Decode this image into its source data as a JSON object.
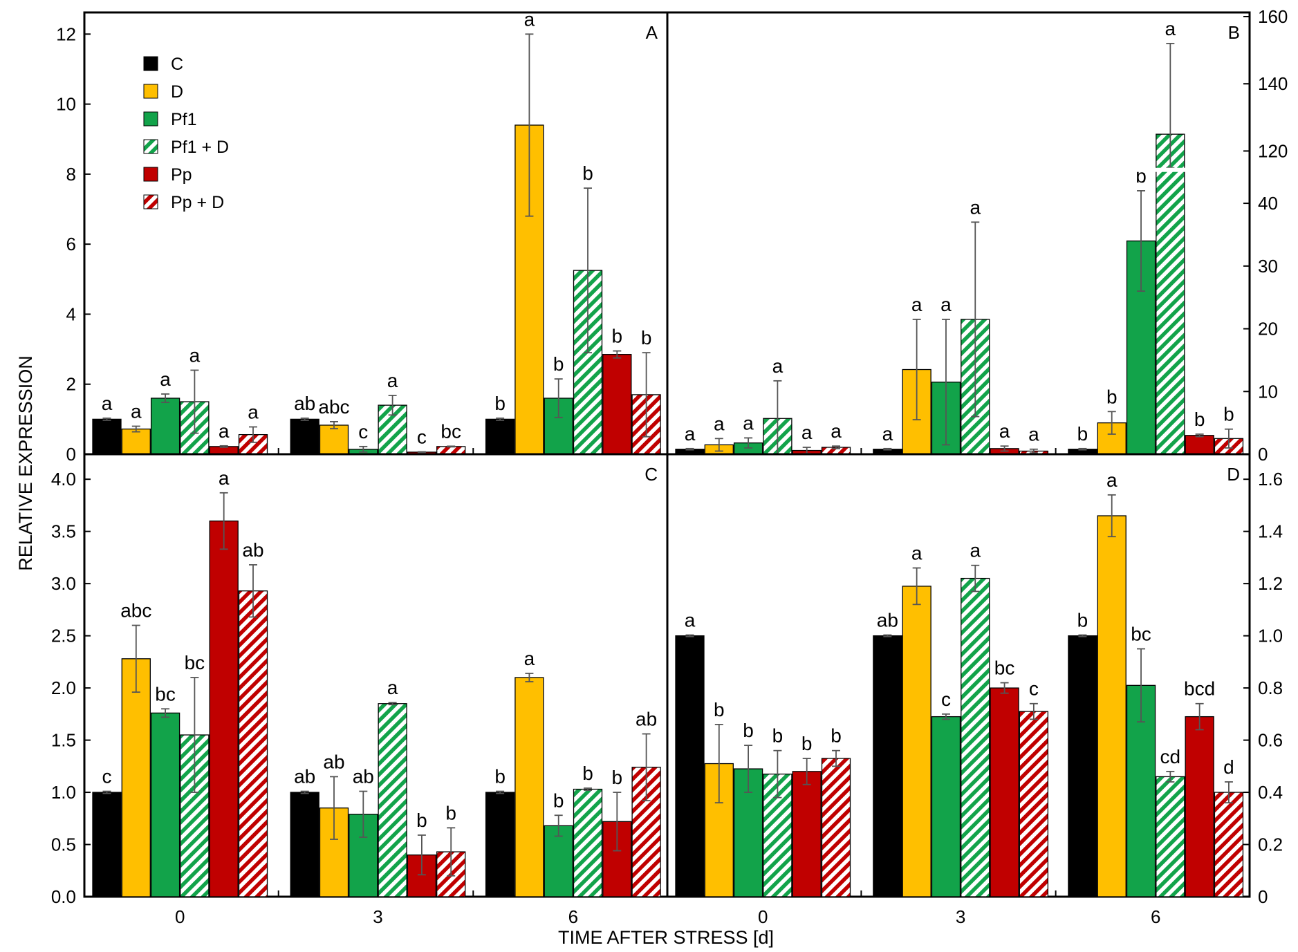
{
  "figure": {
    "ylabel": "RELATIVE EXPRESSION",
    "xlabel": "TIME AFTER STRESS [d]"
  },
  "legend": [
    {
      "label": "C",
      "color": "#000000",
      "pattern": "solid"
    },
    {
      "label": "D",
      "color": "#ffbf00",
      "pattern": "solid"
    },
    {
      "label": "Pf1",
      "color": "#12a34a",
      "pattern": "solid"
    },
    {
      "label": "Pf1 + D",
      "color": "#12a34a",
      "pattern": "hatch"
    },
    {
      "label": "Pp",
      "color": "#c00000",
      "pattern": "solid"
    },
    {
      "label": "Pp + D",
      "color": "#c00000",
      "pattern": "hatch"
    }
  ],
  "chart_data": [
    {
      "panel": "A",
      "type": "bar",
      "categories": [
        "0",
        "3",
        "6"
      ],
      "axis_side": "left",
      "ylim": [
        0,
        12.5
      ],
      "yticks": [
        0,
        2,
        4,
        6,
        8,
        10,
        12
      ],
      "series": [
        {
          "name": "C",
          "values": [
            1.0,
            1.0,
            1.0
          ],
          "errors": [
            0.03,
            0.03,
            0.03
          ],
          "letters": [
            "a",
            "ab",
            "b"
          ]
        },
        {
          "name": "D",
          "values": [
            0.72,
            0.83,
            9.4
          ],
          "errors": [
            0.08,
            0.1,
            2.6
          ],
          "letters": [
            "a",
            "abc",
            "a"
          ]
        },
        {
          "name": "Pf1",
          "values": [
            1.6,
            0.14,
            1.6
          ],
          "errors": [
            0.12,
            0.08,
            0.55
          ],
          "letters": [
            "a",
            "c",
            "b"
          ]
        },
        {
          "name": "Pf1 + D",
          "values": [
            1.5,
            1.4,
            5.25
          ],
          "errors": [
            0.9,
            0.28,
            2.35
          ],
          "letters": [
            "a",
            "a",
            "b"
          ]
        },
        {
          "name": "Pp",
          "values": [
            0.22,
            0.06,
            2.85
          ],
          "errors": [
            0.02,
            0.01,
            0.1
          ],
          "letters": [
            "a",
            "c",
            "b"
          ]
        },
        {
          "name": "Pp + D",
          "values": [
            0.56,
            0.22,
            1.7
          ],
          "errors": [
            0.22,
            0.01,
            1.2
          ],
          "letters": [
            "a",
            "bc",
            "b"
          ]
        }
      ]
    },
    {
      "panel": "B",
      "type": "bar",
      "categories": [
        "0",
        "3",
        "6"
      ],
      "axis_side": "right",
      "axis_break": {
        "lower_max": 45,
        "upper_min": 115,
        "upper_max": 160
      },
      "yticks": [
        0,
        10,
        20,
        30,
        40,
        120,
        140,
        160
      ],
      "series": [
        {
          "name": "C",
          "values": [
            0.8,
            0.8,
            0.8
          ],
          "errors": [
            0.1,
            0.1,
            0.1
          ],
          "letters": [
            "a",
            "a",
            "b"
          ]
        },
        {
          "name": "D",
          "values": [
            1.5,
            13.5,
            5.0
          ],
          "errors": [
            1.0,
            8.0,
            1.8
          ],
          "letters": [
            "a",
            "a",
            "b"
          ]
        },
        {
          "name": "Pf1",
          "values": [
            1.8,
            11.5,
            34.0
          ],
          "errors": [
            0.8,
            10.0,
            8.0
          ],
          "letters": [
            "a",
            "a",
            "b"
          ]
        },
        {
          "name": "Pf1 + D",
          "values": [
            5.7,
            21.5,
            125.0
          ],
          "errors": [
            6.0,
            15.5,
            27.0
          ],
          "letters": [
            "a",
            "a",
            "a"
          ]
        },
        {
          "name": "Pp",
          "values": [
            0.6,
            0.9,
            3.0
          ],
          "errors": [
            0.5,
            0.4,
            0.2
          ],
          "letters": [
            "a",
            "a",
            "b"
          ]
        },
        {
          "name": "Pp + D",
          "values": [
            1.1,
            0.5,
            2.5
          ],
          "errors": [
            0.2,
            0.3,
            1.5
          ],
          "letters": [
            "a",
            "a",
            "b"
          ]
        }
      ]
    },
    {
      "panel": "C",
      "type": "bar",
      "categories": [
        "0",
        "3",
        "6"
      ],
      "axis_side": "left",
      "ylim": [
        0,
        4.2
      ],
      "yticks": [
        0,
        0.5,
        1.0,
        1.5,
        2.0,
        2.5,
        3.0,
        3.5,
        4.0
      ],
      "series": [
        {
          "name": "C",
          "values": [
            1.0,
            1.0,
            1.0
          ],
          "errors": [
            0.01,
            0.01,
            0.01
          ],
          "letters": [
            "c",
            "ab",
            "b"
          ]
        },
        {
          "name": "D",
          "values": [
            2.28,
            0.85,
            2.1
          ],
          "errors": [
            0.32,
            0.3,
            0.04
          ],
          "letters": [
            "abc",
            "ab",
            "a"
          ]
        },
        {
          "name": "Pf1",
          "values": [
            1.76,
            0.79,
            0.68
          ],
          "errors": [
            0.04,
            0.22,
            0.1
          ],
          "letters": [
            "bc",
            "ab",
            "b"
          ]
        },
        {
          "name": "Pf1 + D",
          "values": [
            1.55,
            1.85,
            1.03
          ],
          "errors": [
            0.55,
            0.01,
            0.01
          ],
          "letters": [
            "bc",
            "a",
            "b"
          ]
        },
        {
          "name": "Pp",
          "values": [
            3.6,
            0.4,
            0.72
          ],
          "errors": [
            0.27,
            0.19,
            0.28
          ],
          "letters": [
            "a",
            "b",
            "b"
          ]
        },
        {
          "name": "Pp + D",
          "values": [
            2.93,
            0.43,
            1.24
          ],
          "errors": [
            0.25,
            0.23,
            0.32
          ],
          "letters": [
            "ab",
            "b",
            "ab"
          ]
        }
      ]
    },
    {
      "panel": "D",
      "type": "bar",
      "categories": [
        "0",
        "3",
        "6"
      ],
      "axis_side": "right",
      "ylim": [
        0,
        1.68
      ],
      "yticks": [
        0,
        0.2,
        0.4,
        0.6,
        0.8,
        1.0,
        1.2,
        1.4,
        1.6
      ],
      "series": [
        {
          "name": "C",
          "values": [
            1.0,
            1.0,
            1.0
          ],
          "errors": [
            0.003,
            0.003,
            0.003
          ],
          "letters": [
            "a",
            "ab",
            "b"
          ]
        },
        {
          "name": "D",
          "values": [
            0.51,
            1.19,
            1.46
          ],
          "errors": [
            0.15,
            0.07,
            0.08
          ],
          "letters": [
            "b",
            "a",
            "a"
          ]
        },
        {
          "name": "Pf1",
          "values": [
            0.49,
            0.69,
            0.81
          ],
          "errors": [
            0.09,
            0.01,
            0.14
          ],
          "letters": [
            "b",
            "c",
            "bc"
          ]
        },
        {
          "name": "Pf1 + D",
          "values": [
            0.47,
            1.22,
            0.46
          ],
          "errors": [
            0.09,
            0.05,
            0.02
          ],
          "letters": [
            "b",
            "a",
            "cd"
          ]
        },
        {
          "name": "Pp",
          "values": [
            0.48,
            0.8,
            0.69
          ],
          "errors": [
            0.05,
            0.02,
            0.05
          ],
          "letters": [
            "b",
            "bc",
            "bcd"
          ]
        },
        {
          "name": "Pp + D",
          "values": [
            0.53,
            0.71,
            0.4
          ],
          "errors": [
            0.03,
            0.03,
            0.04
          ],
          "letters": [
            "b",
            "c",
            "d"
          ]
        }
      ]
    }
  ]
}
